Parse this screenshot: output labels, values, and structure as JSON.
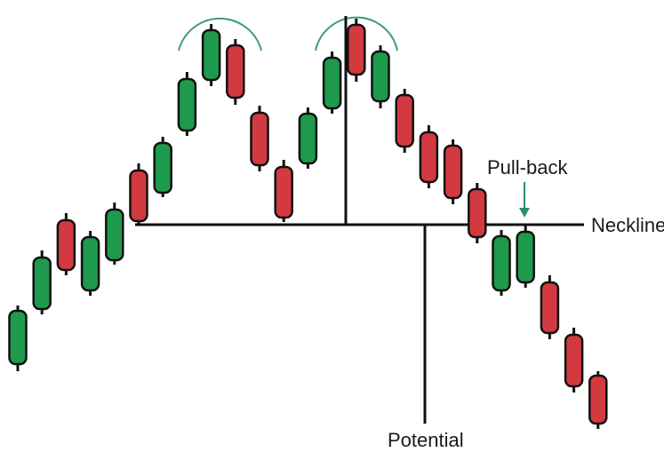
{
  "labels": {
    "neckline": "Neckline",
    "pull_back": "Pull-back",
    "potential": "Potential"
  },
  "colors": {
    "bull": "#1e9a4c",
    "bear": "#d23a3f",
    "outline": "#111111",
    "arc": "#3a9c7a",
    "arrow": "#2e8f6e",
    "line": "#111111"
  },
  "candles": [
    {
      "dir": "up",
      "body": [
        350,
        410
      ],
      "wick": [
        344,
        418
      ]
    },
    {
      "dir": "up",
      "body": [
        290,
        348
      ],
      "wick": [
        282,
        354
      ]
    },
    {
      "dir": "down",
      "body": [
        248,
        304
      ],
      "wick": [
        240,
        310
      ]
    },
    {
      "dir": "up",
      "body": [
        267,
        327
      ],
      "wick": [
        260,
        333
      ]
    },
    {
      "dir": "up",
      "body": [
        236,
        293
      ],
      "wick": [
        228,
        298
      ]
    },
    {
      "dir": "down",
      "body": [
        192,
        249
      ],
      "wick": [
        184,
        254
      ]
    },
    {
      "dir": "up",
      "body": [
        161,
        217
      ],
      "wick": [
        154,
        222
      ]
    },
    {
      "dir": "up",
      "body": [
        89,
        147
      ],
      "wick": [
        81,
        153
      ]
    },
    {
      "dir": "up",
      "body": [
        34,
        90
      ],
      "wick": [
        27,
        97
      ]
    },
    {
      "dir": "down",
      "body": [
        51,
        110
      ],
      "wick": [
        44,
        118
      ]
    },
    {
      "dir": "down",
      "body": [
        127,
        186
      ],
      "wick": [
        119,
        193
      ]
    },
    {
      "dir": "down",
      "body": [
        188,
        245
      ],
      "wick": [
        180,
        250
      ]
    },
    {
      "dir": "up",
      "body": [
        128,
        184
      ],
      "wick": [
        121,
        190
      ]
    },
    {
      "dir": "up",
      "body": [
        65,
        122
      ],
      "wick": [
        58,
        128
      ]
    },
    {
      "dir": "down",
      "body": [
        28,
        84
      ],
      "wick": [
        21,
        92
      ]
    },
    {
      "dir": "up",
      "body": [
        58,
        114
      ],
      "wick": [
        51,
        122
      ]
    },
    {
      "dir": "down",
      "body": [
        107,
        165
      ],
      "wick": [
        100,
        172
      ]
    },
    {
      "dir": "down",
      "body": [
        149,
        205
      ],
      "wick": [
        141,
        212
      ]
    },
    {
      "dir": "down",
      "body": [
        164,
        223
      ],
      "wick": [
        157,
        230
      ]
    },
    {
      "dir": "down",
      "body": [
        213,
        267
      ],
      "wick": [
        206,
        274
      ]
    },
    {
      "dir": "up",
      "body": [
        266,
        327
      ],
      "wick": [
        259,
        333
      ]
    },
    {
      "dir": "up",
      "body": [
        261,
        318
      ],
      "wick": [
        254,
        324
      ]
    },
    {
      "dir": "down",
      "body": [
        318,
        375
      ],
      "wick": [
        310,
        382
      ]
    },
    {
      "dir": "down",
      "body": [
        377,
        435
      ],
      "wick": [
        369,
        442
      ]
    },
    {
      "dir": "down",
      "body": [
        423,
        477
      ],
      "wick": [
        418,
        483
      ]
    }
  ]
}
